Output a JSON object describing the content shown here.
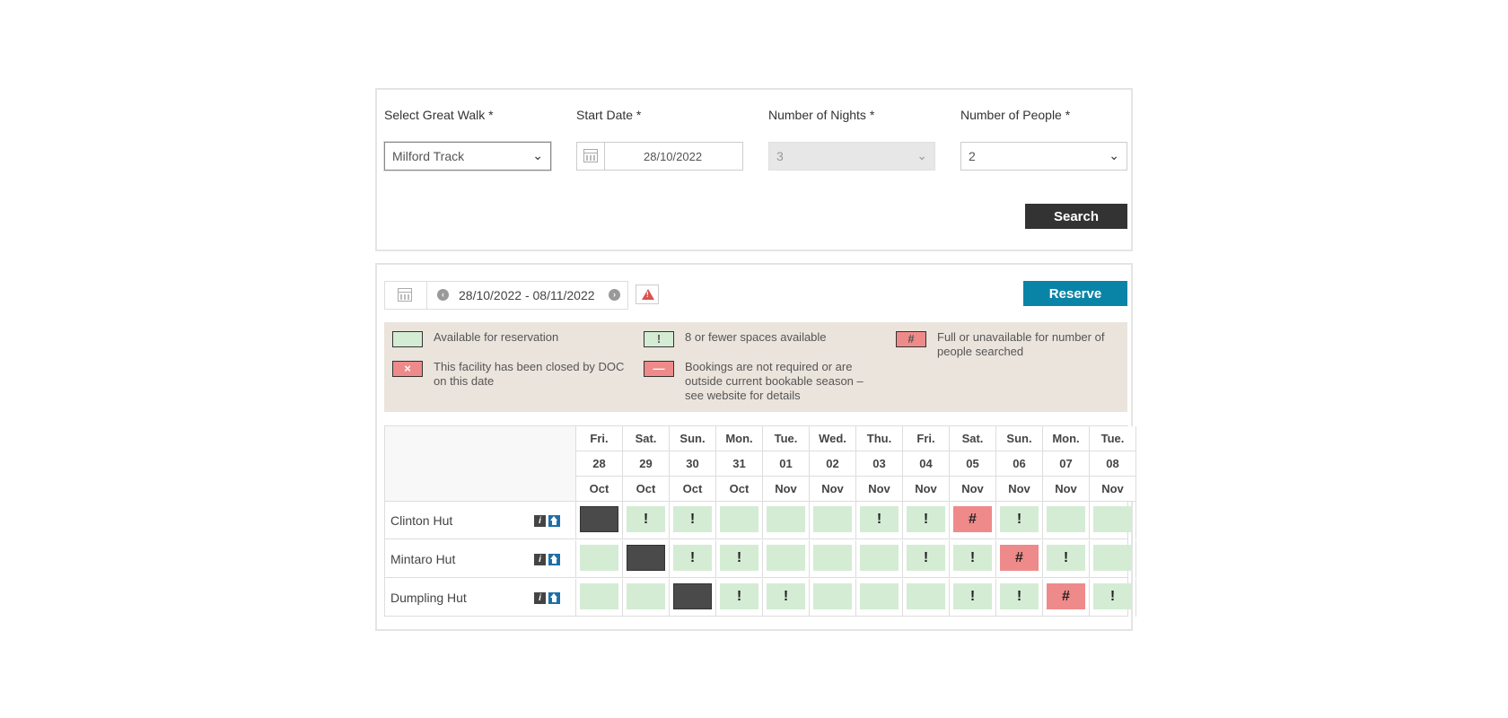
{
  "search": {
    "walk_label": "Select Great Walk *",
    "walk_value": "Milford Track",
    "start_label": "Start Date *",
    "start_value": "28/10/2022",
    "nights_label": "Number of Nights *",
    "nights_value": "3",
    "people_label": "Number of People *",
    "people_value": "2",
    "search_button": "Search"
  },
  "availability": {
    "date_range": "28/10/2022 - 08/11/2022",
    "reserve_button": "Reserve",
    "legend": [
      {
        "text": "Available for reservation",
        "symbol": "",
        "color": "#d4ecd4"
      },
      {
        "text": "8 or fewer spaces available",
        "symbol": "!",
        "color": "#d4ecd4"
      },
      {
        "text": "Full or unavailable for number of people searched",
        "symbol": "#",
        "color": "#ef8a8a"
      },
      {
        "text": "This facility has been closed by DOC on this date",
        "symbol": "×",
        "color": "#ef8a8a"
      },
      {
        "text": "Bookings are not required or are outside current bookable season – see website for details",
        "symbol": "—",
        "color": "#ef8a8a"
      }
    ],
    "days": [
      {
        "dow": "Fri.",
        "day": "28",
        "month": "Oct"
      },
      {
        "dow": "Sat.",
        "day": "29",
        "month": "Oct"
      },
      {
        "dow": "Sun.",
        "day": "30",
        "month": "Oct"
      },
      {
        "dow": "Mon.",
        "day": "31",
        "month": "Oct"
      },
      {
        "dow": "Tue.",
        "day": "01",
        "month": "Nov"
      },
      {
        "dow": "Wed.",
        "day": "02",
        "month": "Nov"
      },
      {
        "dow": "Thu.",
        "day": "03",
        "month": "Nov"
      },
      {
        "dow": "Fri.",
        "day": "04",
        "month": "Nov"
      },
      {
        "dow": "Sat.",
        "day": "05",
        "month": "Nov"
      },
      {
        "dow": "Sun.",
        "day": "06",
        "month": "Nov"
      },
      {
        "dow": "Mon.",
        "day": "07",
        "month": "Nov"
      },
      {
        "dow": "Tue.",
        "day": "08",
        "month": "Nov"
      }
    ],
    "huts": [
      {
        "name": "Clinton Hut",
        "cells": [
          "past",
          "few",
          "few",
          "avail",
          "avail",
          "avail",
          "few",
          "few",
          "full",
          "few",
          "avail",
          "avail"
        ]
      },
      {
        "name": "Mintaro Hut",
        "cells": [
          "avail",
          "past",
          "few",
          "few",
          "avail",
          "avail",
          "avail",
          "few",
          "few",
          "full",
          "few",
          "avail"
        ]
      },
      {
        "name": "Dumpling Hut",
        "cells": [
          "avail",
          "avail",
          "past",
          "few",
          "few",
          "avail",
          "avail",
          "avail",
          "few",
          "few",
          "full",
          "few"
        ]
      }
    ]
  }
}
